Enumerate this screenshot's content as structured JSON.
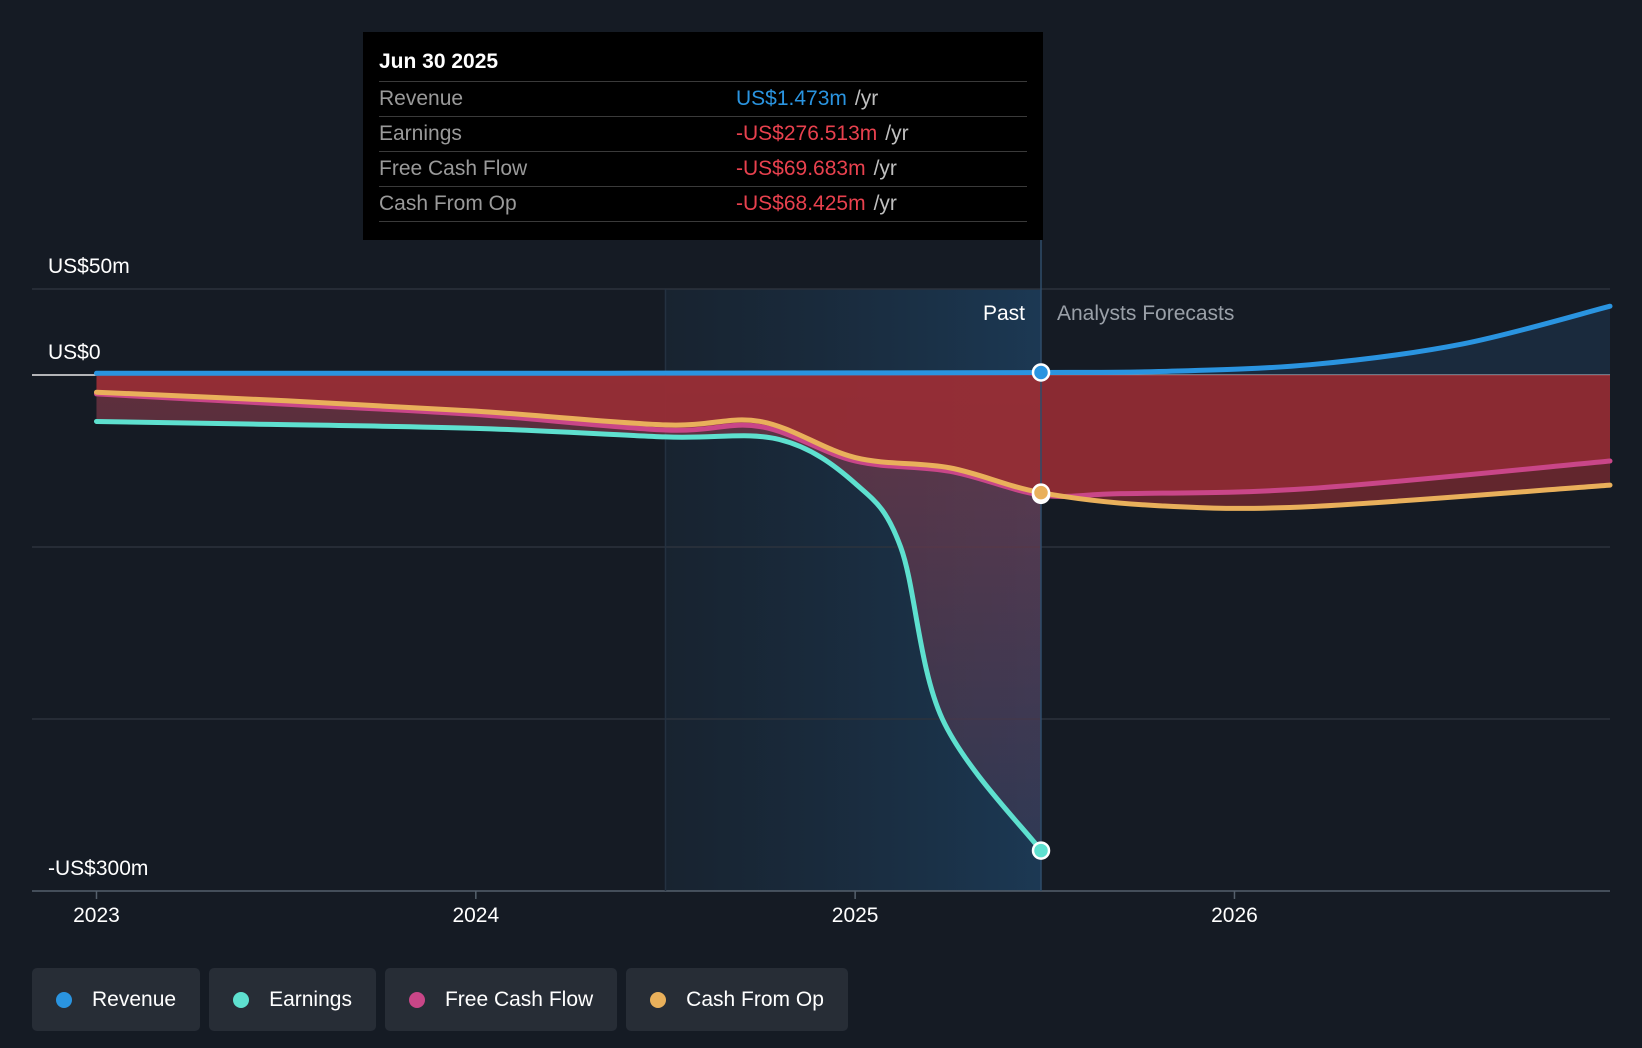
{
  "tooltip": {
    "date": "Jun 30 2025",
    "rows": [
      {
        "label": "Revenue",
        "value": "US$1.473m",
        "unit": "/yr",
        "color": "#2a94e0"
      },
      {
        "label": "Earnings",
        "value": "-US$276.513m",
        "unit": "/yr",
        "color": "#e8414e"
      },
      {
        "label": "Free Cash Flow",
        "value": "-US$69.683m",
        "unit": "/yr",
        "color": "#e8414e"
      },
      {
        "label": "Cash From Op",
        "value": "-US$68.425m",
        "unit": "/yr",
        "color": "#e8414e"
      }
    ]
  },
  "legend": [
    {
      "label": "Revenue",
      "color": "#2a94e0"
    },
    {
      "label": "Earnings",
      "color": "#5ee0cf"
    },
    {
      "label": "Free Cash Flow",
      "color": "#c94688"
    },
    {
      "label": "Cash From Op",
      "color": "#e9b05b"
    }
  ],
  "chart_data": {
    "type": "line",
    "title": "",
    "xlabel": "",
    "ylabel": "",
    "x_ticks": [
      {
        "label": "2023",
        "value": 2023.0
      },
      {
        "label": "2024",
        "value": 2024.0
      },
      {
        "label": "2025",
        "value": 2025.0
      },
      {
        "label": "2026",
        "value": 2026.0
      }
    ],
    "y_tick_labels": [
      {
        "label": "US$50m",
        "value": 50
      },
      {
        "label": "US$0",
        "value": 0
      },
      {
        "label": "-US$300m",
        "value": -300
      }
    ],
    "gridlines": [
      50,
      0,
      -100,
      -200,
      -300
    ],
    "xlim": [
      2022.83,
      2026.99
    ],
    "ylim": [
      -300,
      50
    ],
    "divider": {
      "x": 2025.49,
      "past_label": "Past",
      "forecast_label": "Analysts Forecasts"
    },
    "highlight_start": 2024.5,
    "series": [
      {
        "name": "Revenue",
        "color": "#2a94e0",
        "points": [
          [
            2023.0,
            1
          ],
          [
            2024.0,
            1
          ],
          [
            2025.0,
            1.2
          ],
          [
            2025.49,
            1.473
          ],
          [
            2025.8,
            2
          ],
          [
            2026.2,
            6
          ],
          [
            2026.6,
            18
          ],
          [
            2026.99,
            40
          ]
        ]
      },
      {
        "name": "Earnings",
        "color": "#5ee0cf",
        "points": [
          [
            2023.0,
            -27
          ],
          [
            2023.4,
            -28.5
          ],
          [
            2024.0,
            -31
          ],
          [
            2024.5,
            -36
          ],
          [
            2024.8,
            -37.5
          ],
          [
            2025.0,
            -63
          ],
          [
            2025.12,
            -100
          ],
          [
            2025.23,
            -200
          ],
          [
            2025.49,
            -276.5
          ]
        ]
      },
      {
        "name": "Free Cash Flow",
        "color": "#c94688",
        "points": [
          [
            2023.0,
            -11
          ],
          [
            2023.5,
            -17
          ],
          [
            2024.0,
            -23
          ],
          [
            2024.5,
            -32
          ],
          [
            2024.75,
            -30
          ],
          [
            2025.0,
            -50
          ],
          [
            2025.25,
            -56
          ],
          [
            2025.49,
            -69.7
          ],
          [
            2025.7,
            -69
          ],
          [
            2026.2,
            -66
          ],
          [
            2026.99,
            -50
          ]
        ]
      },
      {
        "name": "Cash From Op",
        "color": "#e9b05b",
        "points": [
          [
            2023.0,
            -10
          ],
          [
            2023.5,
            -15
          ],
          [
            2024.0,
            -21
          ],
          [
            2024.5,
            -29
          ],
          [
            2024.75,
            -27
          ],
          [
            2025.0,
            -48
          ],
          [
            2025.25,
            -54
          ],
          [
            2025.49,
            -68.4
          ],
          [
            2025.8,
            -76
          ],
          [
            2026.2,
            -76.5
          ],
          [
            2026.99,
            -64
          ]
        ]
      }
    ]
  }
}
